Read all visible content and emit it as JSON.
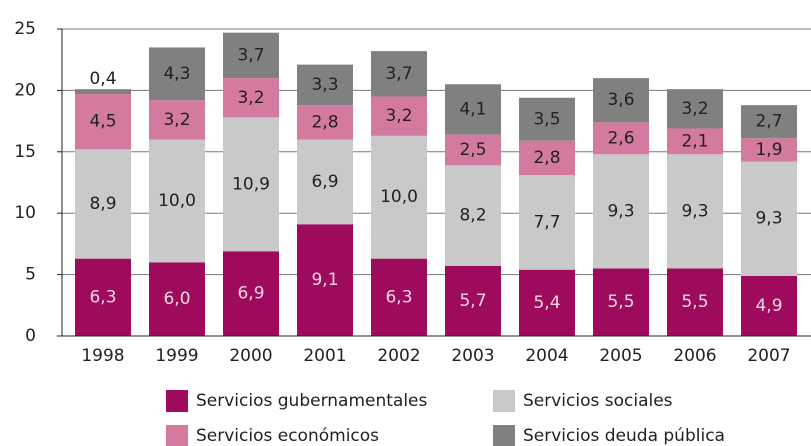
{
  "chart_data": {
    "type": "stacked_bar",
    "categories": [
      "1998",
      "1999",
      "2000",
      "2001",
      "2002",
      "2003",
      "2004",
      "2005",
      "2006",
      "2007"
    ],
    "series": [
      {
        "name": "Servicios gubernamentales",
        "color": "#9e0b5c",
        "values": [
          6.3,
          6.0,
          6.9,
          9.1,
          6.3,
          5.7,
          5.4,
          5.5,
          5.5,
          4.9
        ],
        "value_labels": [
          "6,3",
          "6,0",
          "6,9",
          "9,1",
          "6,3",
          "5,7",
          "5,4",
          "5,5",
          "5,5",
          "4,9"
        ]
      },
      {
        "name": "Servicios sociales",
        "color": "#c9c9c9",
        "values": [
          8.9,
          10.0,
          10.9,
          6.9,
          10.0,
          8.2,
          7.7,
          9.3,
          9.3,
          9.3
        ],
        "value_labels": [
          "8,9",
          "10,0",
          "10,9",
          "6,9",
          "10,0",
          "8,2",
          "7,7",
          "9,3",
          "9,3",
          "9,3"
        ]
      },
      {
        "name": "Servicios económicos",
        "color": "#d47a9f",
        "values": [
          4.5,
          3.2,
          3.2,
          2.8,
          3.2,
          2.5,
          2.8,
          2.6,
          2.1,
          1.9
        ],
        "value_labels": [
          "4,5",
          "3,2",
          "3,2",
          "2,8",
          "3,2",
          "2,5",
          "2,8",
          "2,6",
          "2,1",
          "1,9"
        ]
      },
      {
        "name": "Servicios deuda pública",
        "color": "#808080",
        "values": [
          0.4,
          4.3,
          3.7,
          3.3,
          3.7,
          4.1,
          3.5,
          3.6,
          3.2,
          2.7
        ],
        "value_labels": [
          "0,4",
          "4,3",
          "3,7",
          "3,3",
          "3,7",
          "4,1",
          "3,5",
          "3,6",
          "3,2",
          "2,7"
        ]
      }
    ],
    "ylim": [
      0,
      25
    ],
    "yticks": [
      0,
      5,
      10,
      15,
      20,
      25
    ],
    "grid": true,
    "legend": "bottom"
  }
}
